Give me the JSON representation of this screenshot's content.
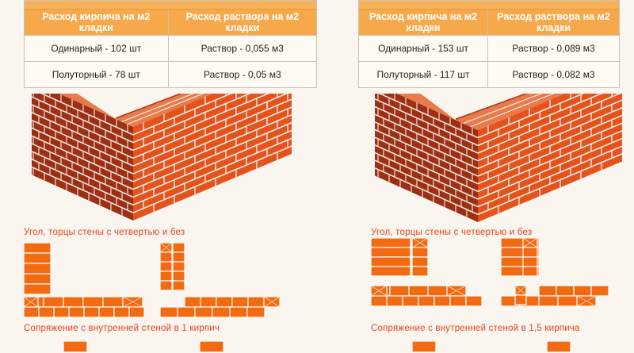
{
  "left": {
    "table": {
      "headers": [
        "Расход кирпича на м2 кладки",
        "Расход раствора на м2 кладки"
      ],
      "rows": [
        [
          "Одинарный - 102 шт",
          "Раствор - 0,055 м3"
        ],
        [
          "Полуторный - 78 шт",
          "Раствор - 0,05 м3"
        ]
      ]
    },
    "caption_corner": "Угол, торцы стены с четвертью и без",
    "caption_junction": "Сопряжение с внутренней стеной в 1 кирпич"
  },
  "right": {
    "table": {
      "headers": [
        "Расход кирпича на м2 кладки",
        "Расход раствора на м2 кладки"
      ],
      "rows": [
        [
          "Одинарный - 153 шт",
          "Раствор - 0,089 м3"
        ],
        [
          "Полуторный - 117 шт",
          "Раствор - 0,082 м3"
        ]
      ]
    },
    "caption_corner": "Угол, торцы стены с четвертью и без",
    "caption_junction": "Сопряжение с внутренней стеной в 1,5 кирпича"
  },
  "colors": {
    "table_header": "#f6a84b",
    "brick_front": "#e4531c",
    "brick_side": "#9c2f14",
    "brick_top": "#e87a4c",
    "plan_brick": "#f26a12",
    "caption": "#e0461d"
  }
}
